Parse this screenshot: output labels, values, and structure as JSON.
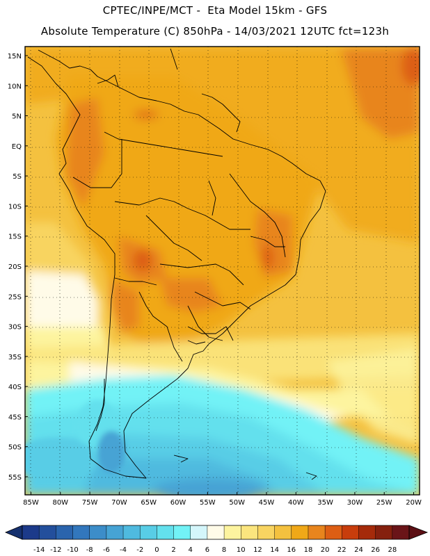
{
  "header": {
    "line1": "CPTEC/INPE/MCT -  Eta Model 15km - GFS",
    "line2": "Absolute Temperature (C) 850hPa - 14/03/2021 12UTC fct=123h"
  },
  "map": {
    "lat_labels": [
      "15N",
      "10N",
      "5N",
      "EQ",
      "5S",
      "10S",
      "15S",
      "20S",
      "25S",
      "30S",
      "35S",
      "40S",
      "45S",
      "50S",
      "55S"
    ],
    "lon_labels": [
      "85W",
      "80W",
      "75W",
      "70W",
      "65W",
      "60W",
      "55W",
      "50W",
      "45W",
      "40W",
      "35W",
      "30W",
      "25W",
      "20W"
    ],
    "lat_values": [
      15,
      10,
      5,
      0,
      -5,
      -10,
      -15,
      -20,
      -25,
      -30,
      -35,
      -40,
      -45,
      -50,
      -55
    ],
    "lon_values": [
      -85,
      -80,
      -75,
      -70,
      -65,
      -60,
      -55,
      -50,
      -45,
      -40,
      -35,
      -30,
      -25,
      -20
    ],
    "extent": {
      "lon_min": -86,
      "lon max": -19,
      "lat_min": -58,
      "lat_max": 16.5
    }
  },
  "colorbar": {
    "labels": [
      "-14",
      "-12",
      "-10",
      "-8",
      "-6",
      "-4",
      "-2",
      "0",
      "2",
      "4",
      "6",
      "8",
      "10",
      "12",
      "14",
      "16",
      "18",
      "20",
      "22",
      "24",
      "26",
      "28"
    ],
    "colors": [
      "#1c3a8a",
      "#234f9c",
      "#2a64ad",
      "#3277bd",
      "#3c8dc9",
      "#46a3d4",
      "#4fbadf",
      "#58cde6",
      "#63e0ed",
      "#72f2f6",
      "#d4f6fb",
      "#fffbe8",
      "#fdf49f",
      "#fbe57e",
      "#f8d461",
      "#f4c13f",
      "#f0a818",
      "#e8851d",
      "#dd5e14",
      "#c83d0c",
      "#a52a0a",
      "#85200e",
      "#6a1418"
    ],
    "under_color": "#15306e",
    "over_color": "#5c0f14"
  }
}
